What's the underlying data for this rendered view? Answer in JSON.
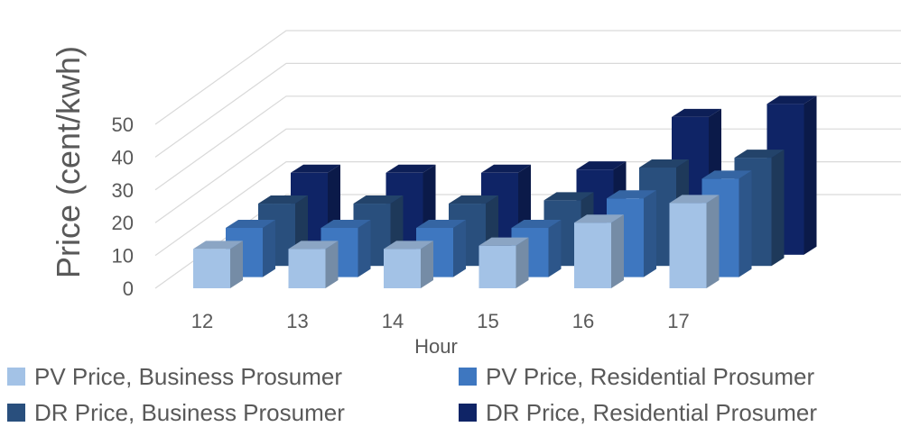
{
  "chart_data": {
    "type": "bar",
    "title": "",
    "xlabel": "Hour",
    "ylabel": "Price (cent/kwh)",
    "categories": [
      "12",
      "13",
      "14",
      "15",
      "16",
      "17"
    ],
    "ylim": [
      0,
      50
    ],
    "yticks": [
      "0",
      "10",
      "20",
      "30",
      "40",
      "50"
    ],
    "grid": true,
    "legend_position": "bottom",
    "series": [
      {
        "name": "PV Price, Business Prosumer",
        "values": [
          12,
          12,
          12,
          13,
          20,
          26
        ],
        "color": "#a3c2e6"
      },
      {
        "name": "PV Price, Residential Prosumer",
        "values": [
          15,
          15,
          15,
          15,
          24,
          30
        ],
        "color": "#3e77c0"
      },
      {
        "name": "DR Price, Business Prosumer",
        "values": [
          19,
          19,
          19,
          20,
          30,
          33
        ],
        "color": "#294f7d"
      },
      {
        "name": "DR Price, Residential Prosumer",
        "values": [
          25,
          25,
          25,
          26,
          42,
          46
        ],
        "color": "#0f2466"
      }
    ]
  }
}
